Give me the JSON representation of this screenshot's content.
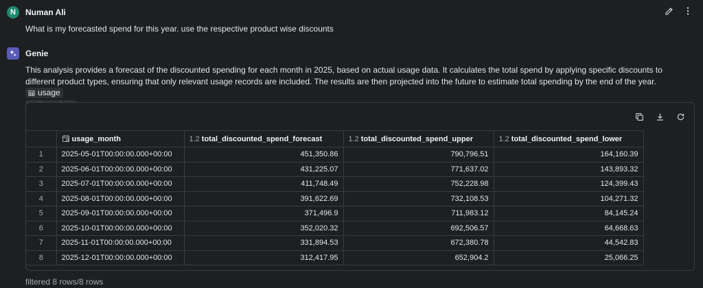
{
  "user": {
    "initial": "N",
    "name": "Numan Ali",
    "question": "What is my forecasted spend for this year. use the respective product wise discounts"
  },
  "genie": {
    "name": "Genie",
    "description": "This analysis provides a forecast of the discounted spending for each month in 2025, based on actual usage data. It calculates the total spend by applying specific discounts to different product types, ensuring that only relevant usage records are included. The results are then projected into the future to estimate total spending by the end of the year.",
    "chips": [
      "usage",
      "list_prices"
    ]
  },
  "icons": {
    "edit": "pencil-icon",
    "more": "more-vertical-icon",
    "genie": "sparkle-icon",
    "table": "table-icon",
    "copy": "copy-icon",
    "download": "download-icon",
    "refresh": "refresh-icon",
    "date": "calendar-icon"
  },
  "table": {
    "columns": [
      {
        "type": "",
        "label": "usage_month"
      },
      {
        "type": "1.2",
        "label": "total_discounted_spend_forecast"
      },
      {
        "type": "1.2",
        "label": "total_discounted_spend_upper"
      },
      {
        "type": "1.2",
        "label": "total_discounted_spend_lower"
      }
    ],
    "rows": [
      {
        "idx": "1",
        "month": "2025-05-01T00:00:00.000+00:00",
        "forecast": "451,350.86",
        "upper": "790,796.51",
        "lower": "164,160.39"
      },
      {
        "idx": "2",
        "month": "2025-06-01T00:00:00.000+00:00",
        "forecast": "431,225.07",
        "upper": "771,637.02",
        "lower": "143,893.32"
      },
      {
        "idx": "3",
        "month": "2025-07-01T00:00:00.000+00:00",
        "forecast": "411,748.49",
        "upper": "752,228.98",
        "lower": "124,399.43"
      },
      {
        "idx": "4",
        "month": "2025-08-01T00:00:00.000+00:00",
        "forecast": "391,622.69",
        "upper": "732,108.53",
        "lower": "104,271.32"
      },
      {
        "idx": "5",
        "month": "2025-09-01T00:00:00.000+00:00",
        "forecast": "371,496.9",
        "upper": "711,983.12",
        "lower": "84,145.24"
      },
      {
        "idx": "6",
        "month": "2025-10-01T00:00:00.000+00:00",
        "forecast": "352,020.32",
        "upper": "692,506.57",
        "lower": "64,668.63"
      },
      {
        "idx": "7",
        "month": "2025-11-01T00:00:00.000+00:00",
        "forecast": "331,894.53",
        "upper": "672,380.78",
        "lower": "44,542.83"
      },
      {
        "idx": "8",
        "month": "2025-12-01T00:00:00.000+00:00",
        "forecast": "312,417.95",
        "upper": "652,904.2",
        "lower": "25,066.25"
      }
    ]
  },
  "footer": "filtered 8 rows/8 rows"
}
